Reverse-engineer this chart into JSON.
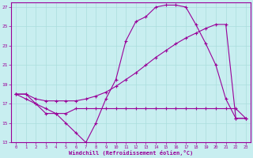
{
  "xlabel": "Windchill (Refroidissement éolien,°C)",
  "xlim": [
    -0.5,
    23.5
  ],
  "ylim": [
    13,
    27.5
  ],
  "xticks": [
    0,
    1,
    2,
    3,
    4,
    5,
    6,
    7,
    8,
    9,
    10,
    11,
    12,
    13,
    14,
    15,
    16,
    17,
    18,
    19,
    20,
    21,
    22,
    23
  ],
  "yticks": [
    13,
    15,
    17,
    19,
    21,
    23,
    25,
    27
  ],
  "bg_color": "#c8eef0",
  "line_color": "#990099",
  "grid_color": "#aadddd",
  "line1_x": [
    0,
    1,
    2,
    3,
    4,
    5,
    6,
    7,
    8,
    9,
    10,
    11,
    12,
    13,
    14,
    15,
    16,
    17,
    18,
    19,
    20,
    21,
    22,
    23
  ],
  "line1_y": [
    18,
    18,
    17,
    16,
    16,
    15,
    14,
    13,
    15,
    17.5,
    19.5,
    23.5,
    25.5,
    26,
    27,
    27.2,
    27.2,
    27,
    25.2,
    23.2,
    21,
    17.5,
    15.5,
    15.5
  ],
  "line2_x": [
    0,
    1,
    2,
    3,
    4,
    5,
    6,
    7,
    8,
    9,
    10,
    11,
    12,
    13,
    14,
    15,
    16,
    17,
    18,
    19,
    20,
    21,
    22,
    23
  ],
  "line2_y": [
    18,
    18,
    17.5,
    17.3,
    17.3,
    17.3,
    17.3,
    17.5,
    17.8,
    18.2,
    18.8,
    19.5,
    20.2,
    21,
    21.8,
    22.5,
    23.2,
    23.8,
    24.3,
    24.8,
    25.2,
    25.2,
    15.5,
    15.5
  ],
  "line3_x": [
    0,
    1,
    2,
    3,
    4,
    5,
    6,
    7,
    8,
    9,
    10,
    11,
    12,
    13,
    14,
    15,
    16,
    17,
    18,
    19,
    20,
    21,
    22,
    23
  ],
  "line3_y": [
    18,
    17.5,
    17,
    16.5,
    16,
    16,
    16.5,
    16.5,
    16.5,
    16.5,
    16.5,
    16.5,
    16.5,
    16.5,
    16.5,
    16.5,
    16.5,
    16.5,
    16.5,
    16.5,
    16.5,
    16.5,
    16.5,
    15.5
  ]
}
